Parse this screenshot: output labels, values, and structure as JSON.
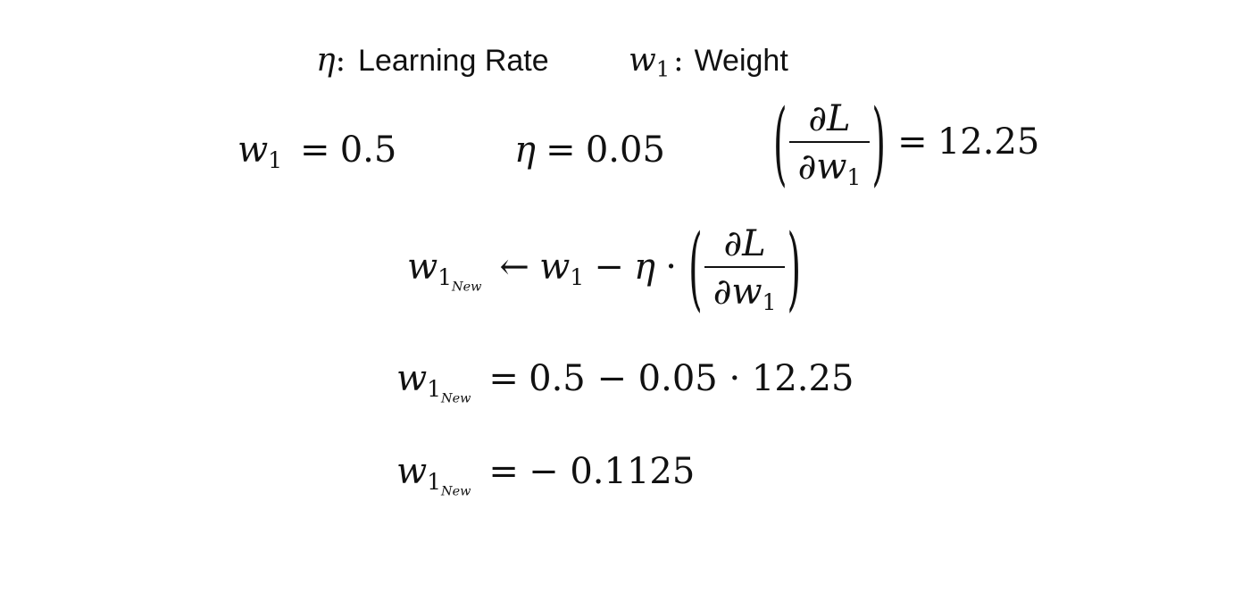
{
  "legend": {
    "eta_symbol": "η",
    "eta_colon": ":",
    "eta_label": "Learning Rate",
    "w_symbol": "w",
    "w_sub": "1",
    "w_colon": ":",
    "w_label": "Weight"
  },
  "givens": {
    "w1": {
      "var": "w",
      "sub": "1",
      "eq": "=",
      "value": "0.5"
    },
    "eta": {
      "var": "η",
      "eq": "=",
      "value": "0.05"
    },
    "grad": {
      "num": "∂L",
      "den_partial": "∂",
      "den_var": "w",
      "den_sub": "1",
      "eq": "=",
      "value": "12.25"
    }
  },
  "update_rule": {
    "lhs_var": "w",
    "lhs_sub": "1",
    "lhs_subsub": "New",
    "arrow": "←",
    "w_var": "w",
    "w_sub": "1",
    "minus": "−",
    "eta": "η",
    "dot": "·",
    "num": "∂L",
    "den_partial": "∂",
    "den_var": "w",
    "den_sub": "1"
  },
  "substitution": {
    "lhs_var": "w",
    "lhs_sub": "1",
    "lhs_subsub": "New",
    "eq": "=",
    "rhs": "0.5 − 0.05 · 12.25"
  },
  "result": {
    "lhs_var": "w",
    "lhs_sub": "1",
    "lhs_subsub": "New",
    "eq": "=",
    "rhs": "− 0.1125"
  }
}
